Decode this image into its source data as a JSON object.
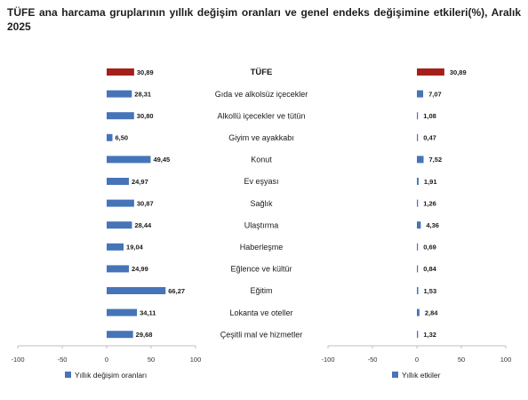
{
  "title": "TÜFE ana harcama gruplarının yıllık değişim oranları ve genel endeks değişimine etkileri(%), Aralık 2025",
  "colors": {
    "highlight": "#a5201d",
    "bar": "#4674b8",
    "axis": "#bfbfbf"
  },
  "chart_data": {
    "type": "bar",
    "orientation": "horizontal",
    "categories": [
      "TÜFE",
      "Gıda ve alkolsüz içecekler",
      "Alkollü içecekler ve tütün",
      "Giyim ve ayakkabı",
      "Konut",
      "Ev eşyası",
      "Sağlık",
      "Ulaştırma",
      "Haberleşme",
      "Eğlence ve kültür",
      "Eğitim",
      "Lokanta ve oteller",
      "Çeşitli mal ve hizmetler"
    ],
    "series": [
      {
        "name": "Yıllık değişim oranları",
        "values": [
          30.89,
          28.31,
          30.8,
          6.5,
          49.45,
          24.97,
          30.87,
          28.44,
          19.04,
          24.99,
          66.27,
          34.11,
          29.68
        ],
        "labels": [
          "30,89",
          "28,31",
          "30,80",
          "6,50",
          "49,45",
          "24,97",
          "30,87",
          "28,44",
          "19,04",
          "24,99",
          "66,27",
          "34,11",
          "29,68"
        ],
        "xlim": [
          -100,
          100
        ],
        "ticks": [
          "-100",
          "-50",
          "0",
          "50",
          "100"
        ]
      },
      {
        "name": "Yıllık etkiler",
        "values": [
          30.89,
          7.07,
          1.08,
          0.47,
          7.52,
          1.91,
          1.26,
          4.36,
          0.69,
          0.84,
          1.53,
          2.84,
          1.32
        ],
        "labels": [
          "30,89",
          "7,07",
          "1,08",
          "0,47",
          "7,52",
          "1,91",
          "1,26",
          "4,36",
          "0,69",
          "0,84",
          "1,53",
          "2,84",
          "1,32"
        ],
        "xlim": [
          -100,
          100
        ],
        "ticks": [
          "-100",
          "-50",
          "0",
          "50",
          "100"
        ]
      }
    ],
    "highlight_category": "TÜFE",
    "legend": [
      "Yıllık değişim oranları",
      "Yıllık etkiler"
    ],
    "legend_placement": "bottom",
    "grid": false
  }
}
